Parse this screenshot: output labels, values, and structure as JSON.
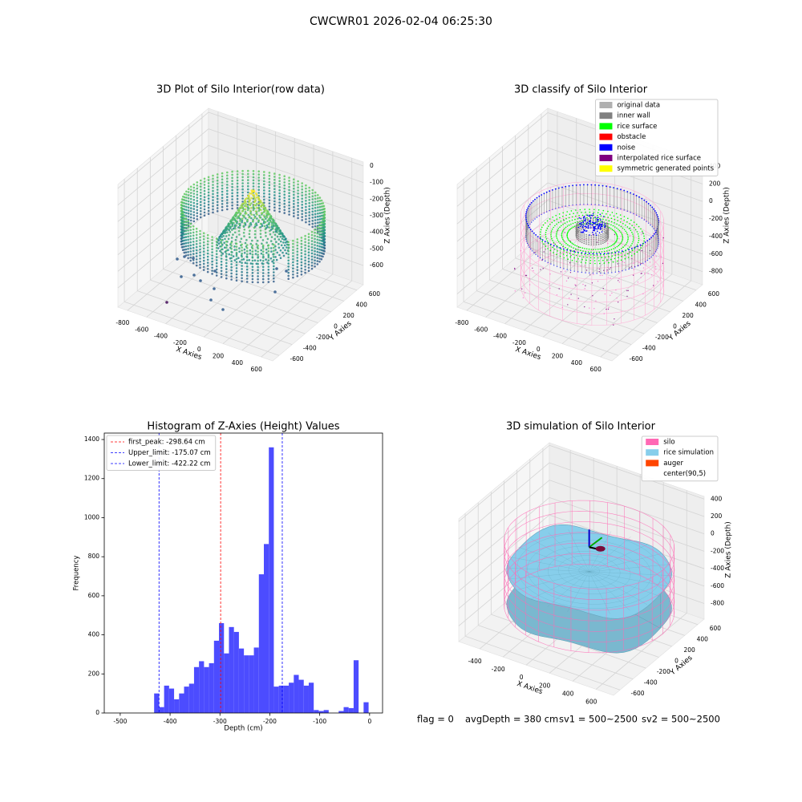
{
  "title": "CWCWR01 2026-02-04 06:25:30",
  "chart_data": [
    {
      "type": "scatter3d",
      "title": "3D Plot of Silo Interior(row data)",
      "xlabel": "X Axies",
      "ylabel": "Y Axies",
      "zlabel": "Z Axies (Depth)",
      "xlim": [
        -900,
        720
      ],
      "xticks": [
        -800,
        -600,
        -400,
        -200,
        0,
        200,
        400,
        600
      ],
      "ylim": [
        -700,
        700
      ],
      "yticks": [
        -600,
        -400,
        -200,
        0,
        200,
        400,
        600
      ],
      "zlim": [
        -716,
        24
      ],
      "zticks": [
        -600,
        -500,
        -400,
        -300,
        -200,
        -100,
        0
      ],
      "grid": true
    },
    {
      "type": "scatter3d",
      "title": "3D classify of Silo Interior",
      "xlabel": "X Axies",
      "ylabel": "Y Axies",
      "zlabel": "Z Axies (Depth)",
      "xlim": [
        -900,
        720
      ],
      "xticks": [
        -800,
        -600,
        -400,
        -200,
        0,
        200,
        400,
        600
      ],
      "ylim": [
        -700,
        700
      ],
      "yticks": [
        -600,
        -400,
        -200,
        0,
        200,
        400,
        600
      ],
      "zlim": [
        -950,
        450
      ],
      "zticks": [
        -800,
        -600,
        -400,
        -200,
        0,
        200,
        400
      ],
      "grid": true,
      "series": [
        {
          "name": "original data",
          "color": "#b0b0b0"
        },
        {
          "name": "inner wall",
          "color": "#808080"
        },
        {
          "name": "rice surface",
          "color": "#00ff00"
        },
        {
          "name": "obstacle",
          "color": "#ff0000"
        },
        {
          "name": "noise",
          "color": "#0000ff"
        },
        {
          "name": "interpolated rice surface",
          "color": "#800080"
        },
        {
          "name": "symmetric generated points",
          "color": "#ffff00"
        }
      ],
      "legend": "upper right"
    },
    {
      "type": "histogram",
      "title": "Histogram of Z-Axies (Height) Values",
      "xlabel": "Depth (cm)",
      "ylabel": "Frequency",
      "bins": [
        -432,
        -422,
        -412,
        -402,
        -392,
        -382,
        -372,
        -362,
        -352,
        -342,
        -332,
        -322,
        -312,
        -302,
        -292,
        -282,
        -272,
        -262,
        -252,
        -242,
        -232,
        -222,
        -212,
        -202,
        -192,
        -182,
        -172,
        -162,
        -152,
        -142,
        -132,
        -122,
        -112,
        -102,
        -92,
        -82,
        -72,
        -62,
        -52,
        -42,
        -32,
        -22,
        -12,
        -2
      ],
      "values": [
        100,
        30,
        140,
        125,
        70,
        100,
        135,
        150,
        235,
        265,
        235,
        255,
        370,
        460,
        305,
        440,
        415,
        330,
        295,
        295,
        335,
        710,
        865,
        1360,
        135,
        140,
        140,
        155,
        195,
        170,
        140,
        155,
        15,
        10,
        15,
        0,
        0,
        10,
        30,
        25,
        270,
        0,
        55
      ],
      "color": "#4c4cff",
      "xlim": [
        -532,
        26
      ],
      "xticks": [
        -500,
        -400,
        -300,
        -200,
        -100,
        0
      ],
      "ylim": [
        0,
        1433
      ],
      "yticks": [
        0,
        200,
        400,
        600,
        800,
        1000,
        1200,
        1400
      ],
      "lines": [
        {
          "name": "first_peak: -298.64 cm",
          "value": -298.64,
          "color": "#ff0000"
        },
        {
          "name": "Upper_limit: -175.07 cm",
          "value": -175.07,
          "color": "#0000ff"
        },
        {
          "name": "Lower_limit: -422.22 cm",
          "value": -422.22,
          "color": "#0000ff"
        }
      ],
      "legend": "upper left"
    },
    {
      "type": "surface3d",
      "title": "3D simulation of Silo Interior",
      "xlabel": "X Axies",
      "ylabel": "Y Axies",
      "zlabel": "Z Axies (Depth)",
      "xlim": [
        -580,
        750
      ],
      "xticks": [
        -400,
        -200,
        0,
        200,
        400,
        600
      ],
      "ylim": [
        -700,
        700
      ],
      "yticks": [
        -600,
        -400,
        -200,
        0,
        200,
        400,
        600
      ],
      "zlim": [
        -980,
        430
      ],
      "zticks": [
        -800,
        -600,
        -400,
        -200,
        0,
        200,
        400
      ],
      "grid": true,
      "series": [
        {
          "name": "silo",
          "color": "#ff69b4"
        },
        {
          "name": "rice simulation",
          "color": "#87ceeb"
        },
        {
          "name": "auger",
          "color": "#ff4500"
        },
        {
          "name": "center(90,5)"
        }
      ],
      "legend": "upper right"
    }
  ],
  "footer": [
    "flag = 0",
    "avgDepth = 380 cm",
    "sv1 = 500~2500",
    "sv2 = 500~2500"
  ]
}
